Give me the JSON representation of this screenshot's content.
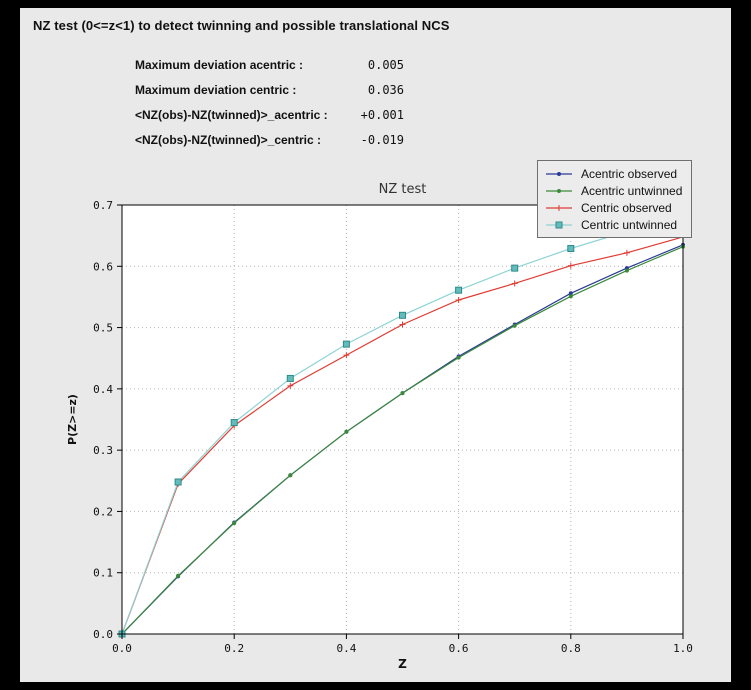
{
  "figure": {
    "title": "NZ test (0<=z<1) to detect twinning and possible translational NCS"
  },
  "stats": [
    {
      "label": "Maximum deviation acentric :",
      "value": "0.005"
    },
    {
      "label": "Maximum deviation centric :",
      "value": "0.036"
    },
    {
      "label": "<NZ(obs)-NZ(twinned)>_acentric :",
      "value": "+0.001"
    },
    {
      "label": "<NZ(obs)-NZ(twinned)>_centric :",
      "value": "-0.019"
    }
  ],
  "chart_data": {
    "type": "line",
    "title": "NZ test",
    "xlabel": "Z",
    "ylabel": "P(Z>=z)",
    "xlim": [
      0.0,
      1.0
    ],
    "ylim": [
      0.0,
      0.7
    ],
    "xticks": [
      0.0,
      0.2,
      0.4,
      0.6,
      0.8,
      1.0
    ],
    "yticks": [
      0.0,
      0.1,
      0.2,
      0.3,
      0.4,
      0.5,
      0.6,
      0.7
    ],
    "grid": true,
    "legend_position": "upper right",
    "x": [
      0.0,
      0.1,
      0.2,
      0.3,
      0.4,
      0.5,
      0.6,
      0.7,
      0.8,
      0.9,
      1.0
    ],
    "series": [
      {
        "name": "Acentric observed",
        "color": "#2b3a96",
        "marker": "dot",
        "values": [
          0.0,
          0.094,
          0.182,
          0.259,
          0.33,
          0.393,
          0.453,
          0.505,
          0.556,
          0.597,
          0.635
        ]
      },
      {
        "name": "Acentric untwinned",
        "color": "#3b8a3b",
        "marker": "dot",
        "values": [
          0.0,
          0.095,
          0.181,
          0.259,
          0.33,
          0.393,
          0.451,
          0.503,
          0.551,
          0.593,
          0.632
        ]
      },
      {
        "name": "Centric observed",
        "color": "#e03c33",
        "marker": "plus",
        "values": [
          0.0,
          0.245,
          0.34,
          0.405,
          0.455,
          0.505,
          0.545,
          0.572,
          0.601,
          0.622,
          0.648
        ]
      },
      {
        "name": "Centric untwinned",
        "color": "#8ed3d3",
        "marker": "square",
        "marker_fill": "#63bcbc",
        "marker_edge": "#2f8a8a",
        "values": [
          0.0,
          0.248,
          0.345,
          0.417,
          0.473,
          0.52,
          0.561,
          0.597,
          0.629,
          0.657,
          0.683
        ]
      }
    ]
  }
}
